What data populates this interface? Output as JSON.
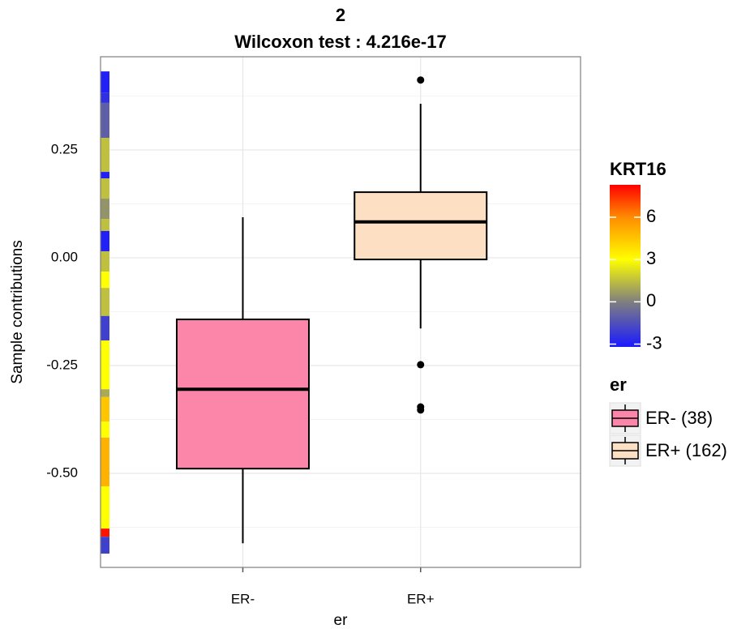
{
  "chart_data": {
    "type": "box",
    "title": "2",
    "subtitle": "Wilcoxon test : 4.216e-17",
    "x_label": "er",
    "y_label": "Sample contributions",
    "categories": [
      "ER-",
      "ER+"
    ],
    "ylim": [
      -0.718,
      0.466
    ],
    "yticks": [
      {
        "value": -0.5,
        "label": "-0.50"
      },
      -0.25,
      {
        "value": 0,
        "label": "0.00"
      },
      0.25
    ],
    "grid": true,
    "series": [
      {
        "name": "ER- (38)",
        "color": "#fc86aa",
        "whisker_low": -0.662,
        "q1": -0.489,
        "median": -0.305,
        "q3": -0.143,
        "whisker_high": 0.094,
        "outliers": []
      },
      {
        "name": "ER+ (162)",
        "color": "#fde0c4",
        "whisker_low": -0.164,
        "q1": -0.004,
        "median": 0.083,
        "q3": 0.152,
        "whisker_high": 0.357,
        "outliers": [
          0.412,
          -0.248,
          -0.346,
          -0.353
        ]
      }
    ],
    "legend_title": "er",
    "colorbar": {
      "title": "KRT16",
      "lim": [
        -3.2,
        8.3
      ],
      "ticks": [
        -3,
        0,
        3,
        6
      ],
      "stops": [
        {
          "value": -3.2,
          "color": "#1a1aff"
        },
        {
          "value": 0,
          "color": "#7f7f7f"
        },
        {
          "value": 3,
          "color": "#ffff00"
        },
        {
          "value": 6,
          "color": "#ff8c00"
        },
        {
          "value": 8.3,
          "color": "#ff0000"
        }
      ]
    },
    "strip": {
      "breaks": [
        0.432,
        0.382,
        0.359,
        0.278,
        0.199,
        0.184,
        0.137,
        0.09,
        0.062,
        0.015,
        -0.032,
        -0.07,
        -0.135,
        -0.192,
        -0.305,
        -0.323,
        -0.38,
        -0.417,
        -0.53,
        -0.628,
        -0.647,
        -0.686
      ],
      "values": [
        -3,
        -2.5,
        -1,
        1.5,
        -3,
        1.5,
        0.5,
        1.5,
        -3,
        1.5,
        3,
        1.5,
        -2,
        3,
        1,
        4.5,
        3,
        5,
        3,
        8,
        -2
      ]
    }
  }
}
